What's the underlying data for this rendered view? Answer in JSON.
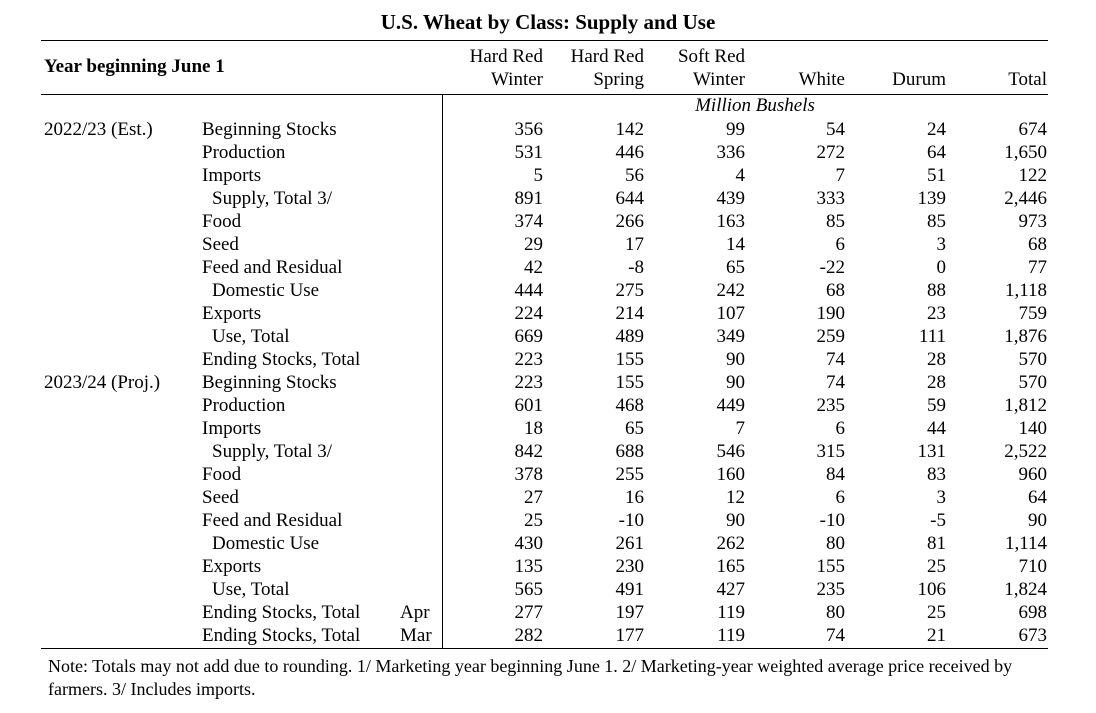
{
  "title": "U.S. Wheat by Class: Supply and Use",
  "year_header": "Year beginning June 1",
  "columns": [
    {
      "line1": "Hard Red",
      "line2": "Winter"
    },
    {
      "line1": "Hard Red",
      "line2": "Spring"
    },
    {
      "line1": "Soft Red",
      "line2": "Winter"
    },
    {
      "line1": "",
      "line2": "White"
    },
    {
      "line1": "",
      "line2": "Durum"
    },
    {
      "line1": "",
      "line2": "Total"
    }
  ],
  "units": "Million Bushels",
  "rows": [
    {
      "year": "2022/23 (Est.)",
      "label": "Beginning Stocks",
      "indent": false,
      "month": "",
      "values": [
        "356",
        "142",
        "99",
        "54",
        "24",
        "674"
      ]
    },
    {
      "year": "",
      "label": "Production",
      "indent": false,
      "month": "",
      "values": [
        "531",
        "446",
        "336",
        "272",
        "64",
        "1,650"
      ]
    },
    {
      "year": "",
      "label": "Imports",
      "indent": false,
      "month": "",
      "values": [
        "5",
        "56",
        "4",
        "7",
        "51",
        "122"
      ]
    },
    {
      "year": "",
      "label": "Supply, Total 3/",
      "indent": true,
      "month": "",
      "values": [
        "891",
        "644",
        "439",
        "333",
        "139",
        "2,446"
      ]
    },
    {
      "year": "",
      "label": "Food",
      "indent": false,
      "month": "",
      "values": [
        "374",
        "266",
        "163",
        "85",
        "85",
        "973"
      ]
    },
    {
      "year": "",
      "label": "Seed",
      "indent": false,
      "month": "",
      "values": [
        "29",
        "17",
        "14",
        "6",
        "3",
        "68"
      ]
    },
    {
      "year": "",
      "label": "Feed and Residual",
      "indent": false,
      "month": "",
      "values": [
        "42",
        "-8",
        "65",
        "-22",
        "0",
        "77"
      ]
    },
    {
      "year": "",
      "label": "Domestic Use",
      "indent": true,
      "month": "",
      "values": [
        "444",
        "275",
        "242",
        "68",
        "88",
        "1,118"
      ]
    },
    {
      "year": "",
      "label": "Exports",
      "indent": false,
      "month": "",
      "values": [
        "224",
        "214",
        "107",
        "190",
        "23",
        "759"
      ]
    },
    {
      "year": "",
      "label": "Use, Total",
      "indent": true,
      "month": "",
      "values": [
        "669",
        "489",
        "349",
        "259",
        "111",
        "1,876"
      ]
    },
    {
      "year": "",
      "label": "Ending Stocks, Total",
      "indent": false,
      "month": "",
      "values": [
        "223",
        "155",
        "90",
        "74",
        "28",
        "570"
      ]
    },
    {
      "year": "2023/24 (Proj.)",
      "label": "Beginning Stocks",
      "indent": false,
      "month": "",
      "values": [
        "223",
        "155",
        "90",
        "74",
        "28",
        "570"
      ]
    },
    {
      "year": "",
      "label": "Production",
      "indent": false,
      "month": "",
      "values": [
        "601",
        "468",
        "449",
        "235",
        "59",
        "1,812"
      ]
    },
    {
      "year": "",
      "label": "Imports",
      "indent": false,
      "month": "",
      "values": [
        "18",
        "65",
        "7",
        "6",
        "44",
        "140"
      ]
    },
    {
      "year": "",
      "label": "Supply, Total 3/",
      "indent": true,
      "month": "",
      "values": [
        "842",
        "688",
        "546",
        "315",
        "131",
        "2,522"
      ]
    },
    {
      "year": "",
      "label": "Food",
      "indent": false,
      "month": "",
      "values": [
        "378",
        "255",
        "160",
        "84",
        "83",
        "960"
      ]
    },
    {
      "year": "",
      "label": "Seed",
      "indent": false,
      "month": "",
      "values": [
        "27",
        "16",
        "12",
        "6",
        "3",
        "64"
      ]
    },
    {
      "year": "",
      "label": "Feed and Residual",
      "indent": false,
      "month": "",
      "values": [
        "25",
        "-10",
        "90",
        "-10",
        "-5",
        "90"
      ]
    },
    {
      "year": "",
      "label": "Domestic Use",
      "indent": true,
      "month": "",
      "values": [
        "430",
        "261",
        "262",
        "80",
        "81",
        "1,114"
      ]
    },
    {
      "year": "",
      "label": "Exports",
      "indent": false,
      "month": "",
      "values": [
        "135",
        "230",
        "165",
        "155",
        "25",
        "710"
      ]
    },
    {
      "year": "",
      "label": "Use, Total",
      "indent": true,
      "month": "",
      "values": [
        "565",
        "491",
        "427",
        "235",
        "106",
        "1,824"
      ]
    },
    {
      "year": "",
      "label": "Ending Stocks, Total",
      "indent": false,
      "month": "Apr",
      "values": [
        "277",
        "197",
        "119",
        "80",
        "25",
        "698"
      ]
    },
    {
      "year": "",
      "label": "Ending Stocks, Total",
      "indent": false,
      "month": "Mar",
      "values": [
        "282",
        "177",
        "119",
        "74",
        "21",
        "673"
      ]
    }
  ],
  "note": "Note: Totals may not add due to rounding. 1/ Marketing year beginning June 1. 2/ Marketing-year weighted average price received by farmers. 3/ Includes imports."
}
